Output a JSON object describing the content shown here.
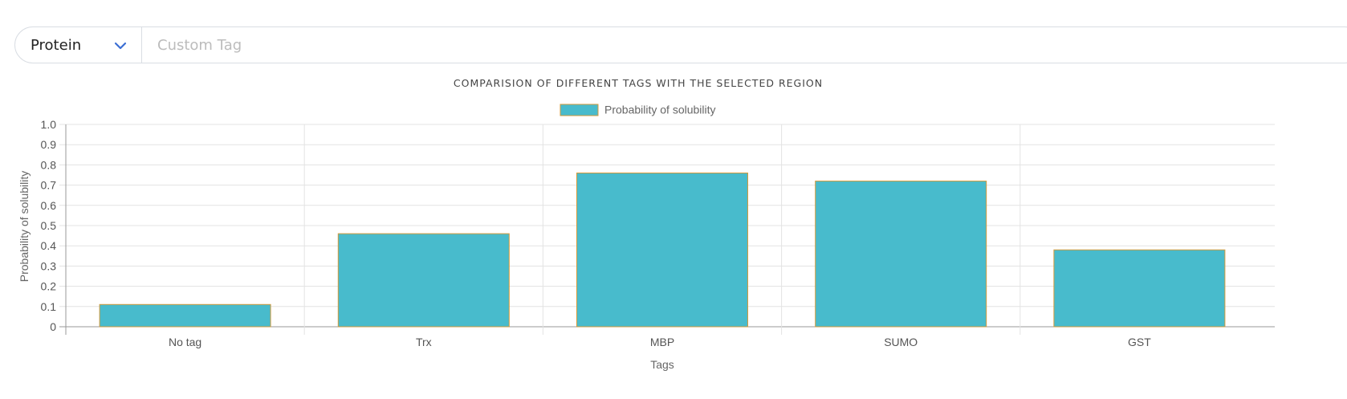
{
  "controls": {
    "select_value": "Protein",
    "custom_tag_placeholder": "Custom Tag"
  },
  "colors": {
    "bar_fill": "#48BBCC",
    "bar_border": "#D49A3A",
    "grid": "#e3e3e3",
    "axis": "#999999"
  },
  "chart_data": {
    "type": "bar",
    "title": "COMPARISION OF DIFFERENT TAGS WITH THE SELECTED REGION",
    "categories": [
      "No tag",
      "Trx",
      "MBP",
      "SUMO",
      "GST"
    ],
    "series": [
      {
        "name": "Probability of solubility",
        "values": [
          0.11,
          0.46,
          0.76,
          0.72,
          0.38
        ]
      }
    ],
    "xlabel": "Tags",
    "ylabel": "Probability of solubility",
    "ylim": [
      0,
      1.0
    ],
    "yticks": [
      "0",
      "0.1",
      "0.2",
      "0.3",
      "0.4",
      "0.5",
      "0.6",
      "0.7",
      "0.8",
      "0.9",
      "1.0"
    ],
    "grid": true,
    "legend_position": "top-center"
  }
}
